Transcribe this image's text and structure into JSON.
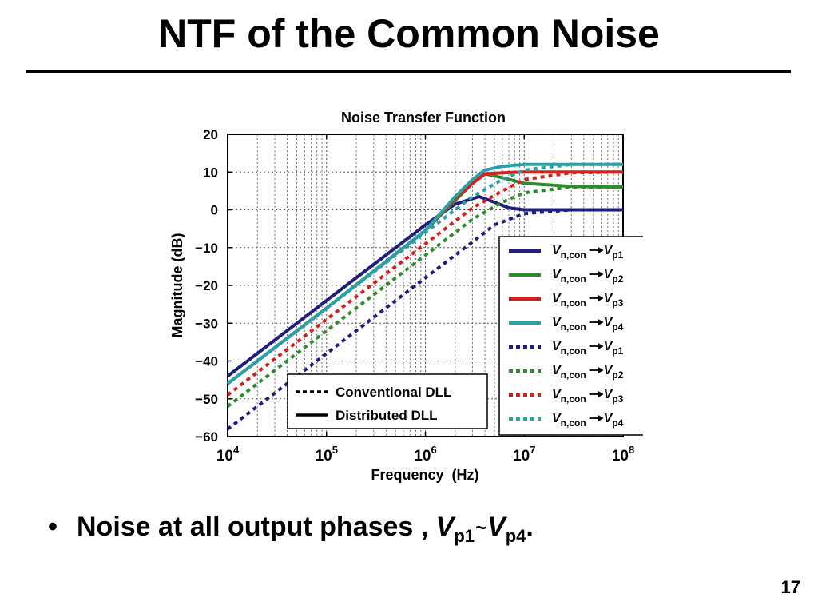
{
  "slide": {
    "title": "NTF of the Common Noise",
    "bullet_text": "Noise at all output phases ,",
    "bullet_v1": "V",
    "bullet_sub1": "p1",
    "bullet_sep": "~",
    "bullet_v2": "V",
    "bullet_sub2": "p4",
    "bullet_end": ".",
    "page_number": "17"
  },
  "chart_data": {
    "type": "line",
    "title": "Noise Transfer Function",
    "xlabel": "Frequency  (Hz)",
    "ylabel": "Magnitude (dB)",
    "xscale": "log",
    "xlim": [
      10000,
      100000000
    ],
    "ylim": [
      -60,
      20
    ],
    "x_ticks": [
      {
        "base": "10",
        "exp": "4"
      },
      {
        "base": "10",
        "exp": "5"
      },
      {
        "base": "10",
        "exp": "6"
      },
      {
        "base": "10",
        "exp": "7"
      },
      {
        "base": "10",
        "exp": "8"
      }
    ],
    "y_ticks": [
      "20",
      "10",
      "0",
      "−10",
      "−20",
      "−30",
      "−40",
      "−50",
      "−60"
    ],
    "grid": true,
    "style_legend": {
      "placement": "bottom-center",
      "entries": [
        {
          "label": "Conventional DLL",
          "style": "dotted"
        },
        {
          "label": "Distributed DLL",
          "style": "solid"
        }
      ]
    },
    "series_legend": {
      "placement": "right",
      "from_main": "V",
      "from_sub": "n,con",
      "to_main": "V"
    },
    "series": [
      {
        "label_sub": "p1",
        "style": "solid",
        "color": "#1f1f7a",
        "x": [
          10000,
          100000,
          1000000,
          2000000,
          3500000,
          5000000,
          7000000,
          10000000,
          30000000,
          100000000
        ],
        "y": [
          -44,
          -24,
          -4,
          1.5,
          3.5,
          2,
          0.5,
          0,
          0,
          0
        ]
      },
      {
        "label_sub": "p2",
        "style": "solid",
        "color": "#2e8b2e",
        "x": [
          10000,
          100000,
          1000000,
          2000000,
          3000000,
          4000000,
          6000000,
          10000000,
          30000000,
          100000000
        ],
        "y": [
          -46,
          -26,
          -5.5,
          2.5,
          7,
          9.5,
          8.5,
          7,
          6.2,
          6
        ]
      },
      {
        "label_sub": "p3",
        "style": "solid",
        "color": "#d62020",
        "x": [
          10000,
          100000,
          1000000,
          2000000,
          3000000,
          4000000,
          6000000,
          10000000,
          30000000,
          100000000
        ],
        "y": [
          -46,
          -26,
          -5.5,
          3,
          7,
          9.5,
          9.8,
          10,
          10,
          10
        ]
      },
      {
        "label_sub": "p4",
        "style": "solid",
        "color": "#2aa0a8",
        "x": [
          10000,
          100000,
          1000000,
          2000000,
          3000000,
          4000000,
          6000000,
          10000000,
          30000000,
          100000000
        ],
        "y": [
          -46,
          -26,
          -5.5,
          3.5,
          8,
          10.5,
          11.5,
          12,
          12,
          12
        ]
      },
      {
        "label_sub": "p1",
        "style": "dotted",
        "color": "#1f1f7a",
        "x": [
          10000,
          100000,
          1000000,
          3000000,
          5000000,
          10000000,
          30000000,
          100000000
        ],
        "y": [
          -58,
          -38,
          -18,
          -8.5,
          -4,
          -1,
          0,
          0
        ]
      },
      {
        "label_sub": "p2",
        "style": "dotted",
        "color": "#2e8b2e",
        "x": [
          10000,
          100000,
          1000000,
          3000000,
          6000000,
          10000000,
          30000000,
          100000000
        ],
        "y": [
          -52,
          -32,
          -12,
          -2.5,
          2,
          4.5,
          6,
          6
        ]
      },
      {
        "label_sub": "p3",
        "style": "dotted",
        "color": "#d62020",
        "x": [
          10000,
          100000,
          1000000,
          3000000,
          6000000,
          10000000,
          30000000,
          100000000
        ],
        "y": [
          -49,
          -29,
          -9,
          0.5,
          5,
          8,
          9.8,
          10
        ]
      },
      {
        "label_sub": "p4",
        "style": "dotted",
        "color": "#2aa0a8",
        "x": [
          10000,
          100000,
          1000000,
          3000000,
          6000000,
          10000000,
          30000000,
          100000000
        ],
        "y": [
          -46,
          -26,
          -6,
          3.5,
          8,
          10.5,
          12,
          12
        ]
      }
    ]
  }
}
